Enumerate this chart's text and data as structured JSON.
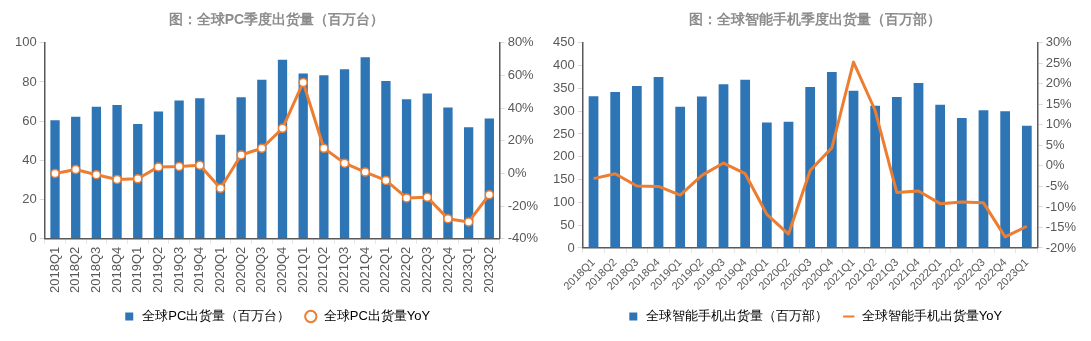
{
  "chart_data": [
    {
      "type": "bar",
      "title": "图：全球PC季度出货量（百万台）",
      "categories": [
        "2018Q1",
        "2018Q2",
        "2018Q3",
        "2018Q4",
        "2019Q1",
        "2019Q2",
        "2019Q3",
        "2019Q4",
        "2020Q1",
        "2020Q2",
        "2020Q3",
        "2020Q4",
        "2021Q1",
        "2021Q2",
        "2021Q3",
        "2021Q4",
        "2022Q1",
        "2022Q2",
        "2022Q3",
        "2022Q4",
        "2023Q1",
        "2023Q2"
      ],
      "series": [
        {
          "name": "全球PC出货量（百万台）",
          "color": "#2e75b6",
          "values": [
            60.5,
            62.3,
            67.3,
            68.2,
            58.6,
            64.9,
            70.5,
            71.7,
            53.1,
            72.2,
            81.1,
            91.4,
            84.3,
            83.5,
            86.5,
            92.6,
            80.5,
            71.2,
            74.1,
            67.0,
            56.9,
            61.4
          ]
        },
        {
          "name": "全球PC出货量YoY",
          "type": "line",
          "axis": "y2",
          "color": "#ed7d31",
          "marker": "circle",
          "values": [
            0,
            2.4,
            -0.8,
            -3.7,
            -3.3,
            4,
            4.3,
            5,
            -9.1,
            11.3,
            15.4,
            27.6,
            55.7,
            15.4,
            6.3,
            0.8,
            -4.3,
            -15,
            -14.6,
            -27.7,
            -29.7,
            -13
          ]
        }
      ],
      "ylim": [
        0,
        100
      ],
      "yticks": [
        0,
        20,
        40,
        60,
        80,
        100
      ],
      "y2lim": [
        -40,
        80
      ],
      "y2ticks": [
        {
          "value": -40,
          "label": "-40%"
        },
        {
          "value": -20,
          "label": "-20%"
        },
        {
          "value": 0,
          "label": "0%"
        },
        {
          "value": 20,
          "label": "20%"
        },
        {
          "value": 40,
          "label": "40%"
        },
        {
          "value": 60,
          "label": "60%"
        },
        {
          "value": 80,
          "label": "80%"
        }
      ],
      "legend": "bottom"
    },
    {
      "type": "bar",
      "title": "图：全球智能手机季度出货量（百万部）",
      "categories": [
        "2018Q1",
        "2018Q2",
        "2018Q3",
        "2018Q4",
        "2019Q1",
        "2019Q2",
        "2019Q3",
        "2019Q4",
        "2020Q1",
        "2020Q2",
        "2020Q3",
        "2020Q4",
        "2021Q1",
        "2021Q2",
        "2021Q3",
        "2021Q4",
        "2022Q1",
        "2022Q2",
        "2022Q3",
        "2022Q4",
        "2023Q1"
      ],
      "series": [
        {
          "name": "全球智能手机出货量（百万部）",
          "color": "#2e75b6",
          "values": [
            333,
            342,
            355,
            375,
            310,
            332,
            359,
            369,
            275,
            277,
            353,
            386,
            345,
            312,
            331,
            362,
            314,
            285,
            302,
            300,
            268
          ]
        },
        {
          "name": "全球智能手机出货量YoY",
          "type": "line",
          "axis": "y2",
          "color": "#ed7d31",
          "values": [
            -3.1,
            -1.9,
            -4.9,
            -5.0,
            -7.1,
            -2.3,
            0.7,
            -1.9,
            -11.8,
            -16.6,
            -1.1,
            4.4,
            25.3,
            13.5,
            -6.5,
            -6.1,
            -9.2,
            -8.8,
            -9.0,
            -17.3,
            -14.7
          ]
        }
      ],
      "ylim": [
        0,
        450
      ],
      "yticks": [
        0,
        50,
        100,
        150,
        200,
        250,
        300,
        350,
        400,
        450
      ],
      "y2lim": [
        -20,
        30
      ],
      "y2ticks": [
        {
          "value": -20,
          "label": "-20%"
        },
        {
          "value": -15,
          "label": "-15%"
        },
        {
          "value": -10,
          "label": "-10%"
        },
        {
          "value": -5,
          "label": "-5%"
        },
        {
          "value": 0,
          "label": "0%"
        },
        {
          "value": 5,
          "label": "5%"
        },
        {
          "value": 10,
          "label": "10%"
        },
        {
          "value": 15,
          "label": "15%"
        },
        {
          "value": 20,
          "label": "20%"
        },
        {
          "value": 25,
          "label": "25%"
        },
        {
          "value": 30,
          "label": "30%"
        }
      ],
      "legend": "bottom"
    }
  ]
}
